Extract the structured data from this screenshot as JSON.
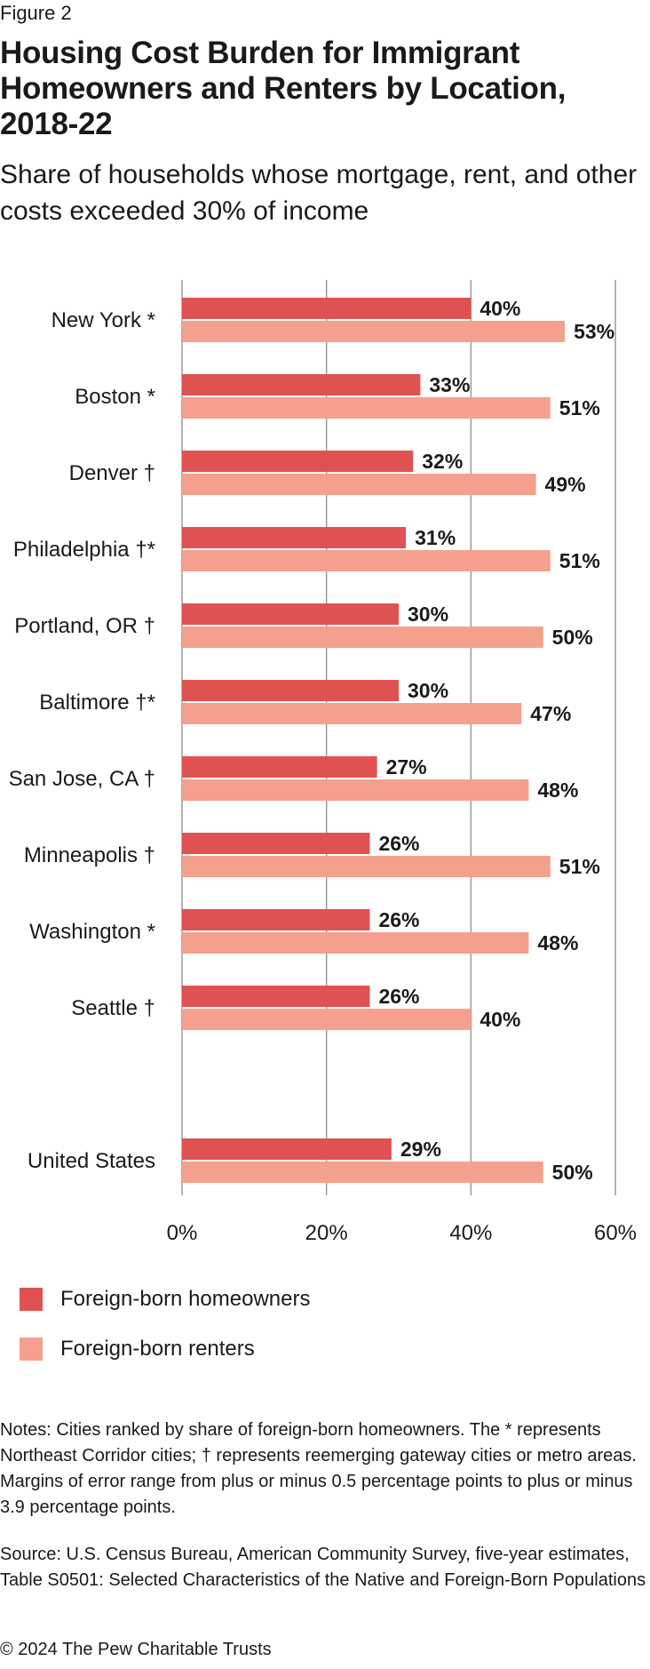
{
  "figure_label": "Figure 2",
  "title": "Housing Cost Burden for Immigrant Homeowners and Renters by Location, 2018-22",
  "subtitle": "Share of households whose mortgage, rent, and other costs exceeded 30% of income",
  "colors": {
    "homeowners": "#e05152",
    "renters": "#f5a08e",
    "grid": "#9a9a9a"
  },
  "chart_data": {
    "type": "bar",
    "orientation": "horizontal",
    "categories": [
      "New York *",
      "Boston *",
      "Denver †",
      "Philadelphia †*",
      "Portland, OR †",
      "Baltimore †*",
      "San Jose, CA †",
      "Minneapolis †",
      "Washington *",
      "Seattle †",
      "United States"
    ],
    "series": [
      {
        "name": "Foreign-born homeowners",
        "values": [
          40,
          33,
          32,
          31,
          30,
          30,
          27,
          26,
          26,
          26,
          29
        ],
        "labels": [
          "40%",
          "33%",
          "32%",
          "31%",
          "30%",
          "30%",
          "27%",
          "26%",
          "26%",
          "26%",
          "29%"
        ]
      },
      {
        "name": "Foreign-born renters",
        "values": [
          53,
          51,
          49,
          51,
          50,
          47,
          48,
          51,
          48,
          40,
          50
        ],
        "labels": [
          "53%",
          "51%",
          "49%",
          "51%",
          "50%",
          "47%",
          "48%",
          "51%",
          "48%",
          "40%",
          "50%"
        ]
      }
    ],
    "x_ticks": [
      "0%",
      "20%",
      "40%",
      "60%"
    ],
    "xlim": [
      0,
      60
    ],
    "grid": true,
    "legend_position": "bottom-left"
  },
  "notes": "Notes: Cities ranked by share of foreign-born homeowners. The * represents Northeast Corridor cities; † represents reemerging gateway cities or metro areas. Margins of error range from plus or minus 0.5 percentage points to plus or minus 3.9 percentage points.",
  "source": "Source: U.S. Census Bureau, American Community Survey, five-year estimates, Table S0501: Selected Characteristics of the Native and Foreign-Born Populations",
  "copyright": "© 2024 The Pew Charitable Trusts"
}
